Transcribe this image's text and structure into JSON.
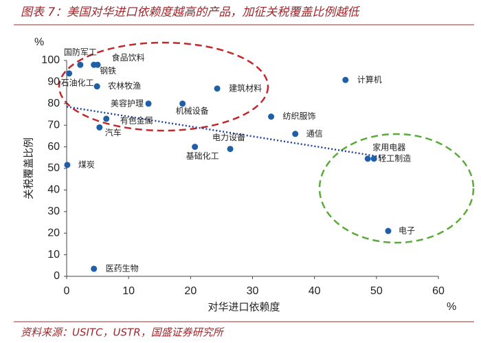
{
  "title": "图表 7：美国对华进口依赖度越高的产品，加征关税覆盖比例越低",
  "source": "资料来源：USITC，USTR，国盛证券研究所",
  "chart_data": {
    "type": "scatter",
    "x_label": "对华进口依赖度",
    "y_label": "关税覆盖比例",
    "x_unit": "%",
    "y_unit": "%",
    "xlim": [
      0,
      60
    ],
    "xticks": [
      0,
      10,
      20,
      30,
      40,
      50,
      60
    ],
    "ylim": [
      0,
      100
    ],
    "yticks": [
      0,
      10,
      20,
      30,
      40,
      50,
      60,
      70,
      80,
      90,
      100
    ],
    "color": "#1f5fa8",
    "labels": [
      "国防军工",
      "食品饮料",
      "钢铁",
      "石油化工",
      "农林牧渔",
      "建筑材料",
      "计算机",
      "美容护理",
      "机械设备",
      "纺织服饰",
      "有色金属",
      "汽车",
      "通信",
      "电力设备",
      "基础化工",
      "家用电器",
      "轻工制造",
      "煤炭",
      "电子",
      "医药生物"
    ],
    "x": [
      2.2,
      4.4,
      5.0,
      0.4,
      4.9,
      24.3,
      45.0,
      13.2,
      18.7,
      33.0,
      6.4,
      5.3,
      36.9,
      26.4,
      20.7,
      49.6,
      48.6,
      0.1,
      51.9,
      4.4
    ],
    "y": [
      98,
      98,
      98,
      94,
      88,
      87,
      91,
      80,
      80,
      74,
      73,
      69,
      66,
      59,
      60,
      54.5,
      54.5,
      51.6,
      21,
      3.5
    ],
    "trendline": {
      "color": "#1f3fa0",
      "x": [
        0,
        51.5
      ],
      "y": [
        78.6,
        55
      ]
    }
  }
}
